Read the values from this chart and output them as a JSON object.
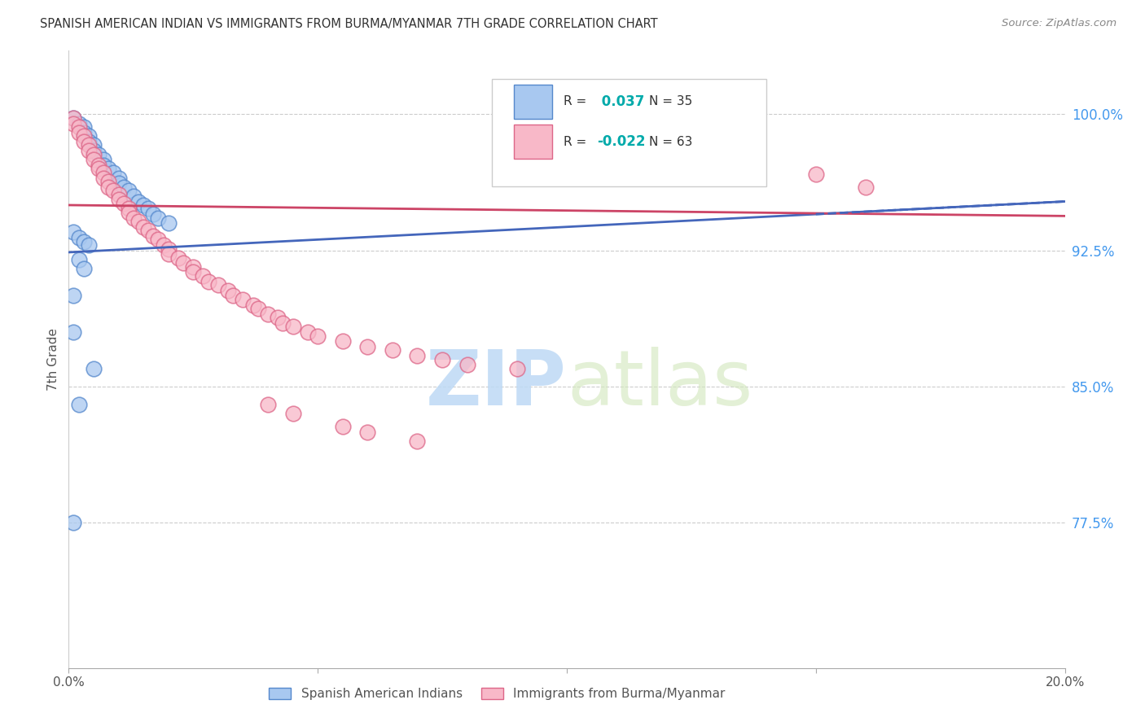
{
  "title": "SPANISH AMERICAN INDIAN VS IMMIGRANTS FROM BURMA/MYANMAR 7TH GRADE CORRELATION CHART",
  "source": "Source: ZipAtlas.com",
  "ylabel": "7th Grade",
  "right_yticks": [
    "100.0%",
    "92.5%",
    "85.0%",
    "77.5%"
  ],
  "right_ytick_vals": [
    1.0,
    0.925,
    0.85,
    0.775
  ],
  "xlim": [
    0.0,
    0.2
  ],
  "ylim": [
    0.695,
    1.035
  ],
  "blue_R": 0.037,
  "blue_N": 35,
  "pink_R": -0.022,
  "pink_N": 63,
  "legend_label_blue": "Spanish American Indians",
  "legend_label_pink": "Immigrants from Burma/Myanmar",
  "watermark_zip": "ZIP",
  "watermark_atlas": "atlas",
  "blue_color": "#A8C8F0",
  "pink_color": "#F8B8C8",
  "blue_edge_color": "#5588CC",
  "pink_edge_color": "#DD6688",
  "blue_line_color": "#4466BB",
  "pink_line_color": "#CC4466",
  "right_axis_color": "#4499EE",
  "title_color": "#333333",
  "source_color": "#888888",
  "grid_color": "#CCCCCC",
  "blue_trend_x": [
    0.0,
    0.2
  ],
  "blue_trend_y": [
    0.924,
    0.952
  ],
  "pink_trend_x": [
    0.0,
    0.2
  ],
  "pink_trend_y": [
    0.95,
    0.944
  ],
  "blue_scatter_x": [
    0.001,
    0.002,
    0.003,
    0.003,
    0.004,
    0.004,
    0.005,
    0.005,
    0.006,
    0.007,
    0.007,
    0.008,
    0.009,
    0.01,
    0.01,
    0.011,
    0.012,
    0.013,
    0.014,
    0.015,
    0.016,
    0.017,
    0.018,
    0.02,
    0.001,
    0.002,
    0.003,
    0.004,
    0.002,
    0.003,
    0.001,
    0.001,
    0.005,
    0.001,
    0.002
  ],
  "blue_scatter_y": [
    0.998,
    0.995,
    0.993,
    0.99,
    0.988,
    0.985,
    0.983,
    0.98,
    0.978,
    0.975,
    0.972,
    0.97,
    0.968,
    0.965,
    0.962,
    0.96,
    0.958,
    0.955,
    0.952,
    0.95,
    0.948,
    0.945,
    0.943,
    0.94,
    0.935,
    0.932,
    0.93,
    0.928,
    0.92,
    0.915,
    0.9,
    0.88,
    0.86,
    0.775,
    0.84
  ],
  "pink_scatter_x": [
    0.001,
    0.001,
    0.002,
    0.002,
    0.003,
    0.003,
    0.004,
    0.004,
    0.005,
    0.005,
    0.006,
    0.006,
    0.007,
    0.007,
    0.008,
    0.008,
    0.009,
    0.01,
    0.01,
    0.011,
    0.012,
    0.012,
    0.013,
    0.014,
    0.015,
    0.016,
    0.017,
    0.018,
    0.019,
    0.02,
    0.02,
    0.022,
    0.023,
    0.025,
    0.025,
    0.027,
    0.028,
    0.03,
    0.032,
    0.033,
    0.035,
    0.037,
    0.038,
    0.04,
    0.042,
    0.043,
    0.045,
    0.048,
    0.05,
    0.055,
    0.06,
    0.065,
    0.07,
    0.075,
    0.08,
    0.09,
    0.04,
    0.045,
    0.055,
    0.06,
    0.07,
    0.15,
    0.16
  ],
  "pink_scatter_y": [
    0.998,
    0.995,
    0.993,
    0.99,
    0.988,
    0.985,
    0.983,
    0.98,
    0.978,
    0.975,
    0.972,
    0.97,
    0.968,
    0.965,
    0.963,
    0.96,
    0.958,
    0.956,
    0.953,
    0.951,
    0.948,
    0.946,
    0.943,
    0.941,
    0.938,
    0.936,
    0.933,
    0.931,
    0.928,
    0.926,
    0.923,
    0.921,
    0.918,
    0.916,
    0.913,
    0.911,
    0.908,
    0.906,
    0.903,
    0.9,
    0.898,
    0.895,
    0.893,
    0.89,
    0.888,
    0.885,
    0.883,
    0.88,
    0.878,
    0.875,
    0.872,
    0.87,
    0.867,
    0.865,
    0.862,
    0.86,
    0.84,
    0.835,
    0.828,
    0.825,
    0.82,
    0.967,
    0.96
  ]
}
